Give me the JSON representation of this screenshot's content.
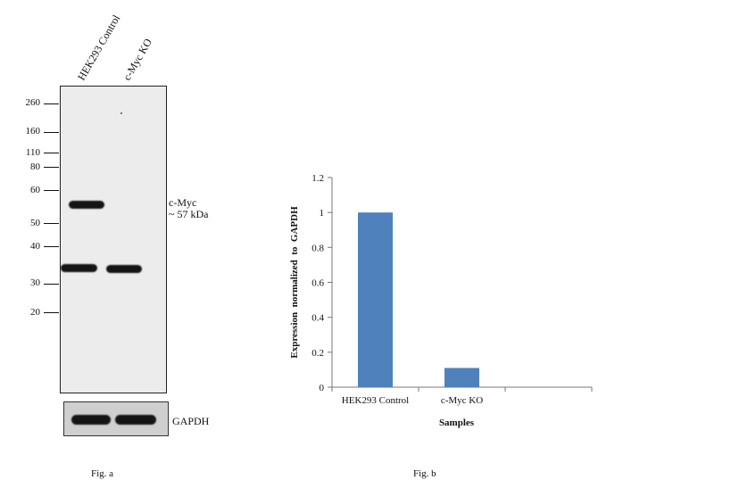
{
  "figure_a": {
    "caption": "Fig. a",
    "lanes": [
      "HEK293 Control",
      "c-Myc KO"
    ],
    "markers": [
      "260",
      "160",
      "110",
      "80",
      "60",
      "50",
      "40",
      "30",
      "20"
    ],
    "target_label": "c-Myc",
    "target_size": "~ 57 kDa",
    "loading_label": "GAPDH"
  },
  "figure_b": {
    "caption": "Fig. b"
  },
  "chart_data": {
    "type": "bar",
    "categories": [
      "HEK293 Control",
      "c-Myc KO",
      ""
    ],
    "values": [
      1.0,
      0.11,
      null
    ],
    "ylabel": "Expression  normalized  to  GAPDH",
    "xlabel": "Samples",
    "ylim": [
      0,
      1.2
    ],
    "yticks": [
      "0",
      "0.2",
      "0.4",
      "0.6",
      "0.8",
      "1",
      "1.2"
    ],
    "grid": false,
    "bar_color": "#4f81bd"
  }
}
